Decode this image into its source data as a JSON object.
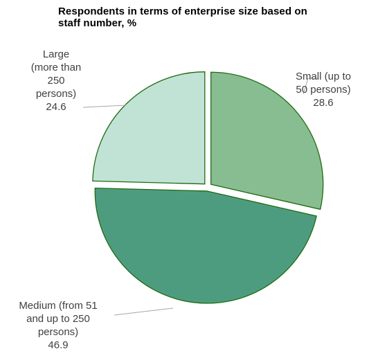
{
  "chart_data": {
    "type": "pie",
    "title": "Respondents  in terms of enterprise size based on staff  number, %",
    "slices": [
      {
        "label": "Small (up to 50 persons)",
        "label_lines": [
          "Small (up to",
          "50 persons)"
        ],
        "value": 28.6,
        "value_text": "28.6",
        "color": "#88bd91"
      },
      {
        "label": "Medium (from 51 and up to 250 persons)",
        "label_lines": [
          "Medium (from 51",
          "and up to 250",
          "persons)"
        ],
        "value": 46.9,
        "value_text": "46.9",
        "color": "#4e9c80"
      },
      {
        "label": "Large (more than 250 persons)",
        "label_lines": [
          "Large",
          "(more  than",
          "250",
          "persons)"
        ],
        "value": 24.6,
        "value_text": "24.6",
        "color": "#c1e3d5"
      }
    ],
    "start_angle_deg": 0,
    "direction": "clockwise",
    "slice_border_color": "#1e6b10",
    "leader_line_color": "#a6a6a6",
    "legend": "none"
  }
}
